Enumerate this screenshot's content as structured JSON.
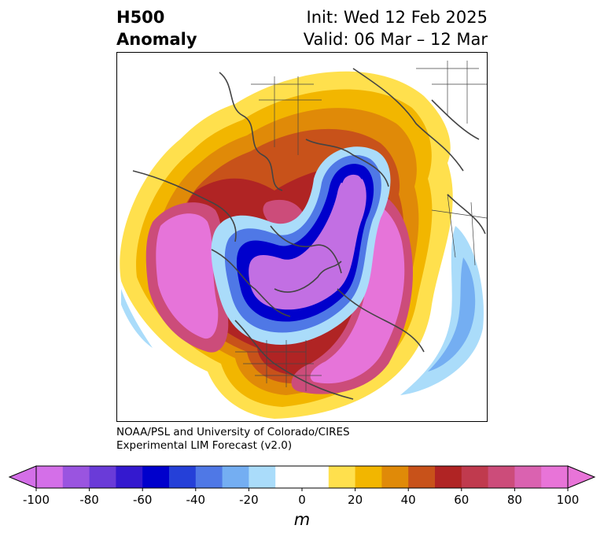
{
  "header": {
    "variable": "H500",
    "field": "Anomaly",
    "init": "Init: Wed 12 Feb 2025",
    "valid": "Valid: 06 Mar – 12 Mar"
  },
  "credit": {
    "line1": "NOAA/PSL and University of Colorado/CIRES",
    "line2": "Experimental LIM Forecast (v2.0)"
  },
  "colorbar": {
    "unit": "m",
    "ticks": [
      "-100",
      "-80",
      "-60",
      "-40",
      "-20",
      "0",
      "20",
      "40",
      "60",
      "80",
      "100"
    ],
    "colors": [
      "#d46fe8",
      "#9a54e0",
      "#6a3bd8",
      "#3419cf",
      "#0000cc",
      "#2540d8",
      "#4f78e6",
      "#74aef2",
      "#aadcfa",
      "#ffffff",
      "#ffffff",
      "#ffe04d",
      "#f2b600",
      "#e08a08",
      "#c8521a",
      "#b02424",
      "#c03a4e",
      "#cc4c7a",
      "#da62b0",
      "#e874d8"
    ]
  },
  "map": {
    "projection": "north-polar-stereographic",
    "colors": {
      "strong_positive": "#e674d9",
      "positive_red": "#b02424",
      "positive_orange": "#e08a08",
      "positive_yellow": "#ffe04d",
      "negative_light": "#aadcfa",
      "negative_blue": "#2540d8",
      "negative_dark": "#0000cc",
      "negative_purple": "#c26fe3",
      "coastline": "#444444"
    }
  }
}
